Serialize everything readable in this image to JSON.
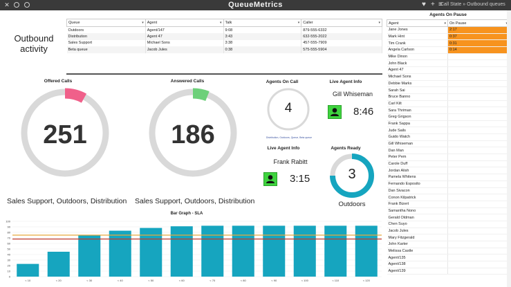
{
  "window": {
    "title": "QueueMetrics",
    "breadcrumb": "Call State » Outbound queues"
  },
  "heading": {
    "line1": "Outbound",
    "line2": "activity"
  },
  "queue_table": {
    "columns": [
      "Queue",
      "Agent",
      "Talk",
      "Caller"
    ],
    "rows": [
      [
        "Outdoors",
        "Agent/147",
        "9:08",
        "879-555-6332"
      ],
      [
        "Distribution",
        "Agent 47",
        "3:43",
        "632-555-2022"
      ],
      [
        "Sales Support",
        "Michael Sons",
        "3:38",
        "457-555-7909"
      ],
      [
        "Beta queue",
        "Jacob Jules",
        "0:38",
        "575-555-5904"
      ]
    ]
  },
  "offered": {
    "label": "Offered Calls",
    "value": "251",
    "queues": "Sales Support, Outdoors, Distribution",
    "fraction": 0.08,
    "color": "#f0608a"
  },
  "answered": {
    "label": "Answered Calls",
    "value": "186",
    "queues": "Sales Support, Outdoors, Distribution",
    "fraction": 0.06,
    "color": "#6dd07a"
  },
  "agents_on_call": {
    "label": "Agents On Call",
    "value": "4",
    "legend": "Distribution, Outdoors, Queue, Beta queue"
  },
  "live_agent_1": {
    "label": "Live Agent Info",
    "name": "Gill Whiseman",
    "timer": "8:46"
  },
  "live_agent_2": {
    "label": "Live Agent Info",
    "name": "Frank Rabitt",
    "timer": "3:15"
  },
  "agents_ready": {
    "label": "Agents Ready",
    "value": "3",
    "queue": "Outdoors",
    "fraction": 0.75,
    "color": "#16a5bf"
  },
  "pause_panel": {
    "title": "Agents On Pause",
    "columns": [
      "Agent",
      "On Pause"
    ],
    "rows": [
      [
        "Jane Jones",
        "2:17"
      ],
      [
        "Mark Hint",
        "0:37"
      ],
      [
        "Tim Crank",
        "0:31"
      ],
      [
        "Angela Carlson",
        "0:14"
      ],
      [
        "Mike Dinon",
        ""
      ],
      [
        "John Black",
        ""
      ],
      [
        "Agent 47",
        ""
      ],
      [
        "Michael Sons",
        ""
      ],
      [
        "Debbie Marks",
        ""
      ],
      [
        "Sarah Sai",
        ""
      ],
      [
        "Bruce Banno",
        ""
      ],
      [
        "Carl Kilt",
        ""
      ],
      [
        "Sara Thriman",
        ""
      ],
      [
        "Greg Grigson",
        ""
      ],
      [
        "Frank Sappa",
        ""
      ],
      [
        "Jude Sails",
        ""
      ],
      [
        "Guido Watch",
        ""
      ],
      [
        "Gill Whiseman",
        ""
      ],
      [
        "Dan Man",
        ""
      ],
      [
        "Peter Pem",
        ""
      ],
      [
        "Carole Duff",
        ""
      ],
      [
        "Jordan Alish",
        ""
      ],
      [
        "Pamela Whitens",
        ""
      ],
      [
        "Fernando Esposito",
        ""
      ],
      [
        "Dan Sivacon",
        ""
      ],
      [
        "Conon Kilpatrick",
        ""
      ],
      [
        "Frank Bizert",
        ""
      ],
      [
        "Samantha Nono",
        ""
      ],
      [
        "Gerald Oldman",
        ""
      ],
      [
        "Chen Suyo",
        ""
      ],
      [
        "Jacob Jules",
        ""
      ],
      [
        "Mary Fitzgerald",
        ""
      ],
      [
        "John Karter",
        ""
      ],
      [
        "Melissa Castle",
        ""
      ],
      [
        "Agent/135",
        ""
      ],
      [
        "Agent/138",
        ""
      ],
      [
        "Agent/139",
        ""
      ]
    ],
    "pause_color": "#f7931e"
  },
  "chart_data": {
    "type": "bar",
    "title": "Bar Graph - SLA",
    "categories": [
      "< 10",
      "< 20",
      "< 30",
      "< 40",
      "< 50",
      "< 60",
      "< 70",
      "< 80",
      "< 90",
      "< 100",
      "< 110",
      "< 120"
    ],
    "values": [
      23,
      45,
      75,
      83,
      88,
      91,
      92,
      92,
      92,
      92,
      92,
      92
    ],
    "ylim": [
      0,
      100
    ],
    "yticks": [
      0,
      10,
      20,
      30,
      40,
      50,
      60,
      70,
      80,
      90,
      100
    ],
    "thresholds": [
      {
        "value": 75,
        "color": "#e8a93a"
      },
      {
        "value": 68,
        "color": "#c0392b"
      }
    ],
    "bar_color": "#16a5bf",
    "grid": true
  }
}
